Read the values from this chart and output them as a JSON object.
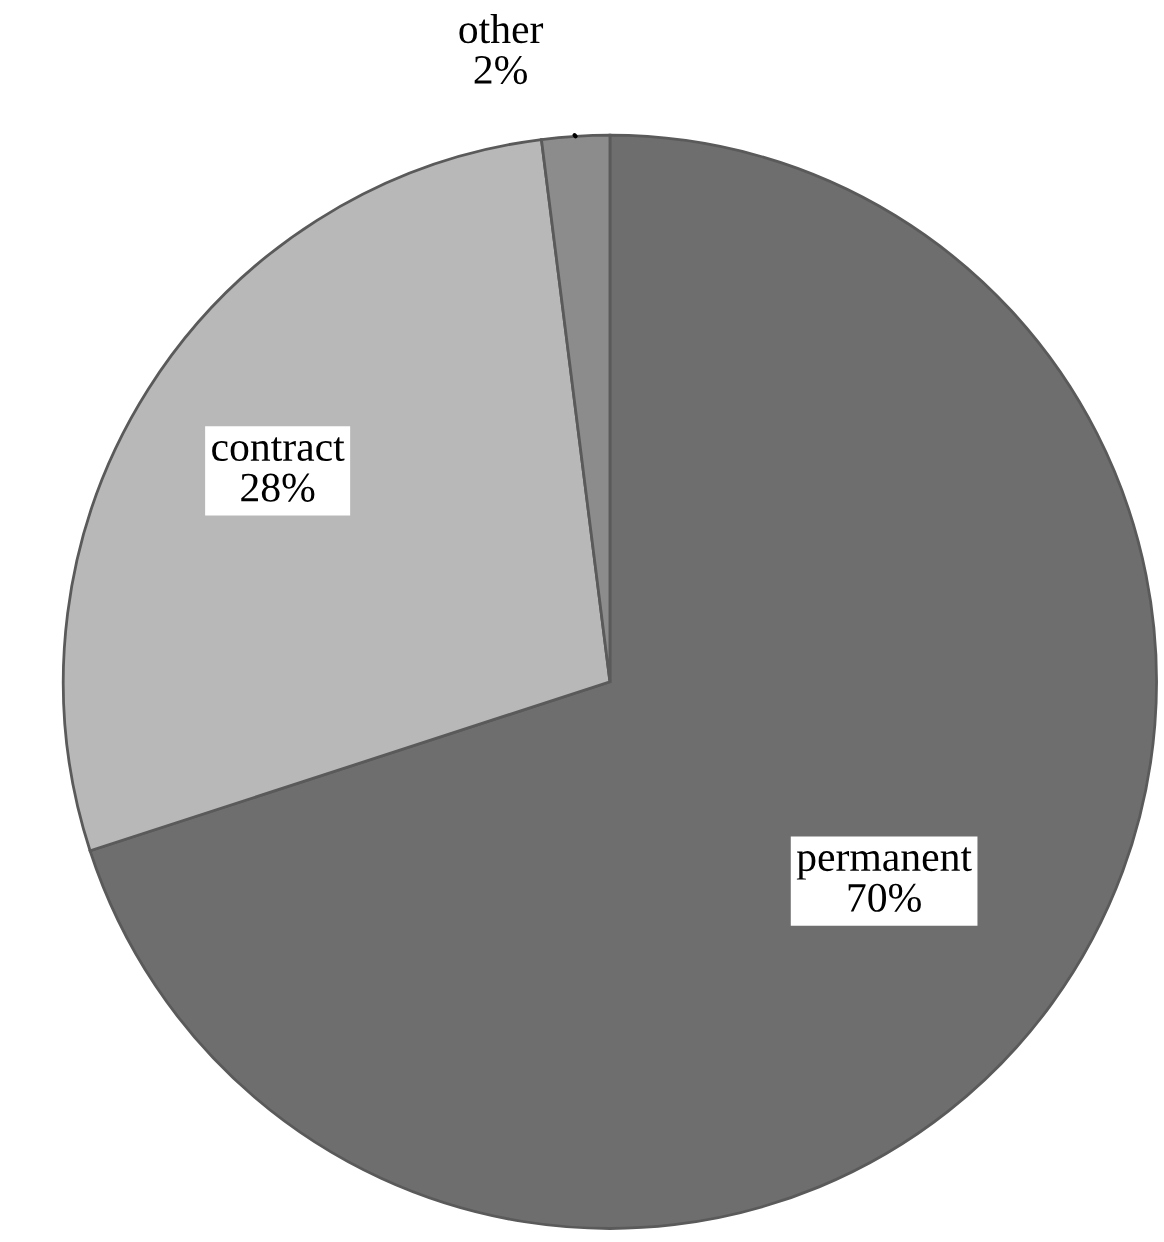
{
  "chart_data": {
    "type": "pie",
    "categories": [
      "permanent",
      "contract",
      "other"
    ],
    "values": [
      70,
      28,
      2
    ],
    "value_labels": [
      "70%",
      "28%",
      "2%"
    ],
    "colors": [
      "#6e6e6e",
      "#b8b8b8",
      "#8c8c8c"
    ]
  }
}
